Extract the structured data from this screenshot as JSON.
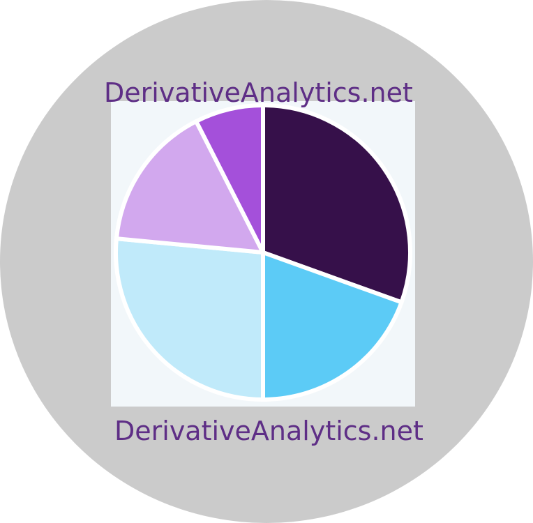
{
  "brand": {
    "wordmark_top": "DerivativeAnalytics.net",
    "wordmark_bottom": "DerivativeAnalytics.net"
  },
  "colors": {
    "badge_background": "#cbcbcb",
    "panel_background": "#f2f7fa",
    "wordmark": "#5e2e86",
    "separator": "#ffffff"
  },
  "chart_data": {
    "type": "pie",
    "title": "",
    "slices": [
      {
        "value": 30.5,
        "color": "#36104a"
      },
      {
        "value": 19.5,
        "color": "#5ccbf6"
      },
      {
        "value": 26.5,
        "color": "#c0eafa"
      },
      {
        "value": 16.0,
        "color": "#d2a8ee"
      },
      {
        "value": 7.5,
        "color": "#a450da"
      }
    ],
    "start_angle_deg": 0,
    "direction": "clockwise",
    "legend": "none",
    "grid": false
  }
}
